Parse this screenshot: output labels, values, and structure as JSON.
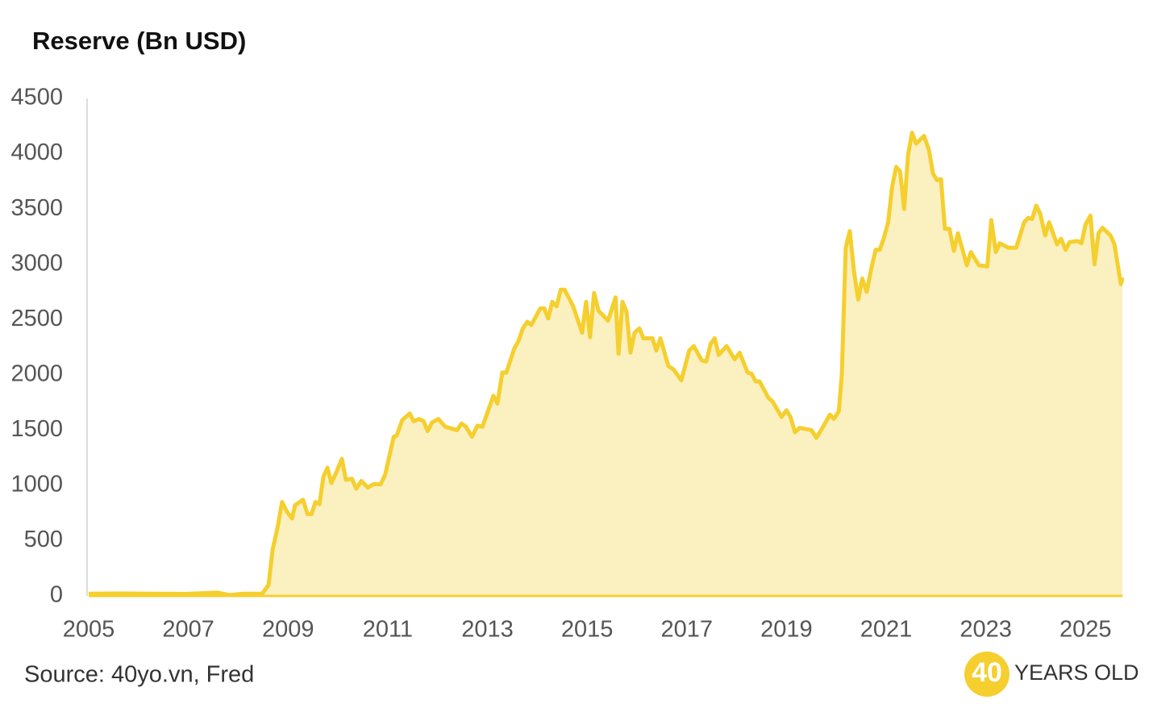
{
  "chart_data": {
    "type": "area",
    "title": "Reserve (Bn USD)",
    "source": "Source: 40yo.vn, Fred",
    "logo_number": "40",
    "logo_text": "YEARS OLD",
    "color": "#f5cf2e",
    "fill_color": "#fbf0c0",
    "xlim": [
      2005,
      2025.74
    ],
    "xticks": [
      2005,
      2007,
      2009,
      2011,
      2013,
      2015,
      2017,
      2019,
      2021,
      2023,
      2025
    ],
    "ylim": [
      0,
      4500
    ],
    "yticks": [
      0,
      500,
      1000,
      1500,
      2000,
      2500,
      3000,
      3500,
      4000,
      4500
    ],
    "x": [
      2005.0,
      2005.65,
      2006.29,
      2006.94,
      2007.59,
      2007.83,
      2008.07,
      2008.48,
      2008.61,
      2008.69,
      2008.79,
      2008.88,
      2008.98,
      2009.08,
      2009.14,
      2009.3,
      2009.39,
      2009.47,
      2009.55,
      2009.63,
      2009.71,
      2009.79,
      2009.87,
      2009.98,
      2010.08,
      2010.16,
      2010.28,
      2010.37,
      2010.47,
      2010.6,
      2010.71,
      2010.86,
      2010.95,
      2011.12,
      2011.18,
      2011.29,
      2011.44,
      2011.52,
      2011.63,
      2011.72,
      2011.8,
      2011.89,
      2012.02,
      2012.15,
      2012.39,
      2012.48,
      2012.57,
      2012.69,
      2012.8,
      2012.9,
      2013.12,
      2013.2,
      2013.3,
      2013.38,
      2013.54,
      2013.62,
      2013.71,
      2013.8,
      2013.88,
      2014.06,
      2014.14,
      2014.22,
      2014.3,
      2014.39,
      2014.47,
      2014.55,
      2014.72,
      2014.9,
      2014.98,
      2015.06,
      2015.14,
      2015.23,
      2015.42,
      2015.57,
      2015.63,
      2015.71,
      2015.79,
      2015.87,
      2015.95,
      2016.05,
      2016.13,
      2016.31,
      2016.39,
      2016.47,
      2016.63,
      2016.73,
      2016.89,
      2017.05,
      2017.14,
      2017.3,
      2017.39,
      2017.48,
      2017.56,
      2017.64,
      2017.8,
      2017.96,
      2018.06,
      2018.22,
      2018.3,
      2018.38,
      2018.46,
      2018.64,
      2018.72,
      2018.9,
      2019.0,
      2019.08,
      2019.17,
      2019.26,
      2019.5,
      2019.6,
      2019.76,
      2019.87,
      2019.95,
      2020.05,
      2020.11,
      2020.19,
      2020.27,
      2020.36,
      2020.44,
      2020.52,
      2020.61,
      2020.7,
      2020.79,
      2020.87,
      2020.95,
      2021.04,
      2021.12,
      2021.2,
      2021.28,
      2021.36,
      2021.44,
      2021.52,
      2021.6,
      2021.76,
      2021.86,
      2021.94,
      2022.02,
      2022.1,
      2022.18,
      2022.27,
      2022.36,
      2022.44,
      2022.62,
      2022.7,
      2022.86,
      2023.03,
      2023.11,
      2023.2,
      2023.28,
      2023.45,
      2023.61,
      2023.77,
      2023.85,
      2023.93,
      2024.01,
      2024.09,
      2024.19,
      2024.27,
      2024.43,
      2024.51,
      2024.6,
      2024.68,
      2024.84,
      2024.92,
      2025.0,
      2025.1,
      2025.18,
      2025.26,
      2025.34,
      2025.5,
      2025.58,
      2025.71,
      2025.74
    ],
    "values": [
      20,
      22,
      20,
      18,
      30,
      8,
      20,
      20,
      100,
      420,
      620,
      850,
      760,
      700,
      820,
      870,
      740,
      740,
      850,
      830,
      1080,
      1160,
      1020,
      1130,
      1240,
      1050,
      1060,
      970,
      1040,
      980,
      1010,
      1010,
      1100,
      1440,
      1450,
      1590,
      1650,
      1580,
      1600,
      1580,
      1490,
      1570,
      1600,
      1530,
      1500,
      1560,
      1530,
      1440,
      1540,
      1530,
      1810,
      1740,
      2020,
      2020,
      2240,
      2300,
      2420,
      2480,
      2450,
      2600,
      2600,
      2510,
      2660,
      2620,
      2770,
      2770,
      2620,
      2380,
      2660,
      2340,
      2740,
      2580,
      2490,
      2700,
      2190,
      2660,
      2570,
      2200,
      2380,
      2420,
      2330,
      2330,
      2220,
      2330,
      2080,
      2050,
      1950,
      2220,
      2260,
      2130,
      2120,
      2280,
      2330,
      2180,
      2260,
      2140,
      2200,
      2020,
      2010,
      1940,
      1940,
      1790,
      1760,
      1620,
      1680,
      1620,
      1480,
      1520,
      1500,
      1430,
      1550,
      1640,
      1600,
      1670,
      2000,
      3150,
      3300,
      2920,
      2680,
      2870,
      2750,
      2960,
      3130,
      3130,
      3230,
      3380,
      3700,
      3880,
      3840,
      3500,
      3990,
      4190,
      4090,
      4160,
      4030,
      3820,
      3760,
      3770,
      3320,
      3320,
      3120,
      3280,
      2990,
      3110,
      2990,
      2980,
      3400,
      3110,
      3190,
      3150,
      3150,
      3380,
      3420,
      3410,
      3530,
      3460,
      3260,
      3380,
      3180,
      3230,
      3130,
      3200,
      3210,
      3190,
      3360,
      3440,
      3000,
      3280,
      3330,
      3260,
      3180,
      2820,
      2880
    ]
  }
}
